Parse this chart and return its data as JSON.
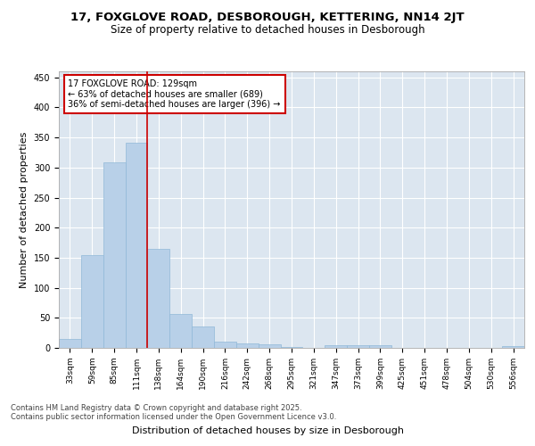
{
  "title_line1": "17, FOXGLOVE ROAD, DESBOROUGH, KETTERING, NN14 2JT",
  "title_line2": "Size of property relative to detached houses in Desborough",
  "xlabel": "Distribution of detached houses by size in Desborough",
  "ylabel": "Number of detached properties",
  "bar_color": "#b8d0e8",
  "bar_edgecolor": "#90b8d8",
  "background_color": "#dce6f0",
  "grid_color": "#ffffff",
  "categories": [
    "33sqm",
    "59sqm",
    "85sqm",
    "111sqm",
    "138sqm",
    "164sqm",
    "190sqm",
    "216sqm",
    "242sqm",
    "268sqm",
    "295sqm",
    "321sqm",
    "347sqm",
    "373sqm",
    "399sqm",
    "425sqm",
    "451sqm",
    "478sqm",
    "504sqm",
    "530sqm",
    "556sqm"
  ],
  "values": [
    15,
    155,
    308,
    342,
    165,
    57,
    35,
    10,
    8,
    6,
    2,
    0,
    5,
    4,
    4,
    0,
    0,
    0,
    0,
    0,
    3
  ],
  "ylim": [
    0,
    460
  ],
  "yticks": [
    0,
    50,
    100,
    150,
    200,
    250,
    300,
    350,
    400,
    450
  ],
  "property_line_x": 3.5,
  "annotation_title": "17 FOXGLOVE ROAD: 129sqm",
  "annotation_line1": "← 63% of detached houses are smaller (689)",
  "annotation_line2": "36% of semi-detached houses are larger (396) →",
  "annotation_box_color": "#ffffff",
  "annotation_border_color": "#cc0000",
  "vline_color": "#cc0000",
  "footer_line1": "Contains HM Land Registry data © Crown copyright and database right 2025.",
  "footer_line2": "Contains public sector information licensed under the Open Government Licence v3.0.",
  "title_fontsize": 9.5,
  "subtitle_fontsize": 8.5,
  "axis_label_fontsize": 8,
  "tick_fontsize": 6.5,
  "annotation_fontsize": 7,
  "footer_fontsize": 6
}
